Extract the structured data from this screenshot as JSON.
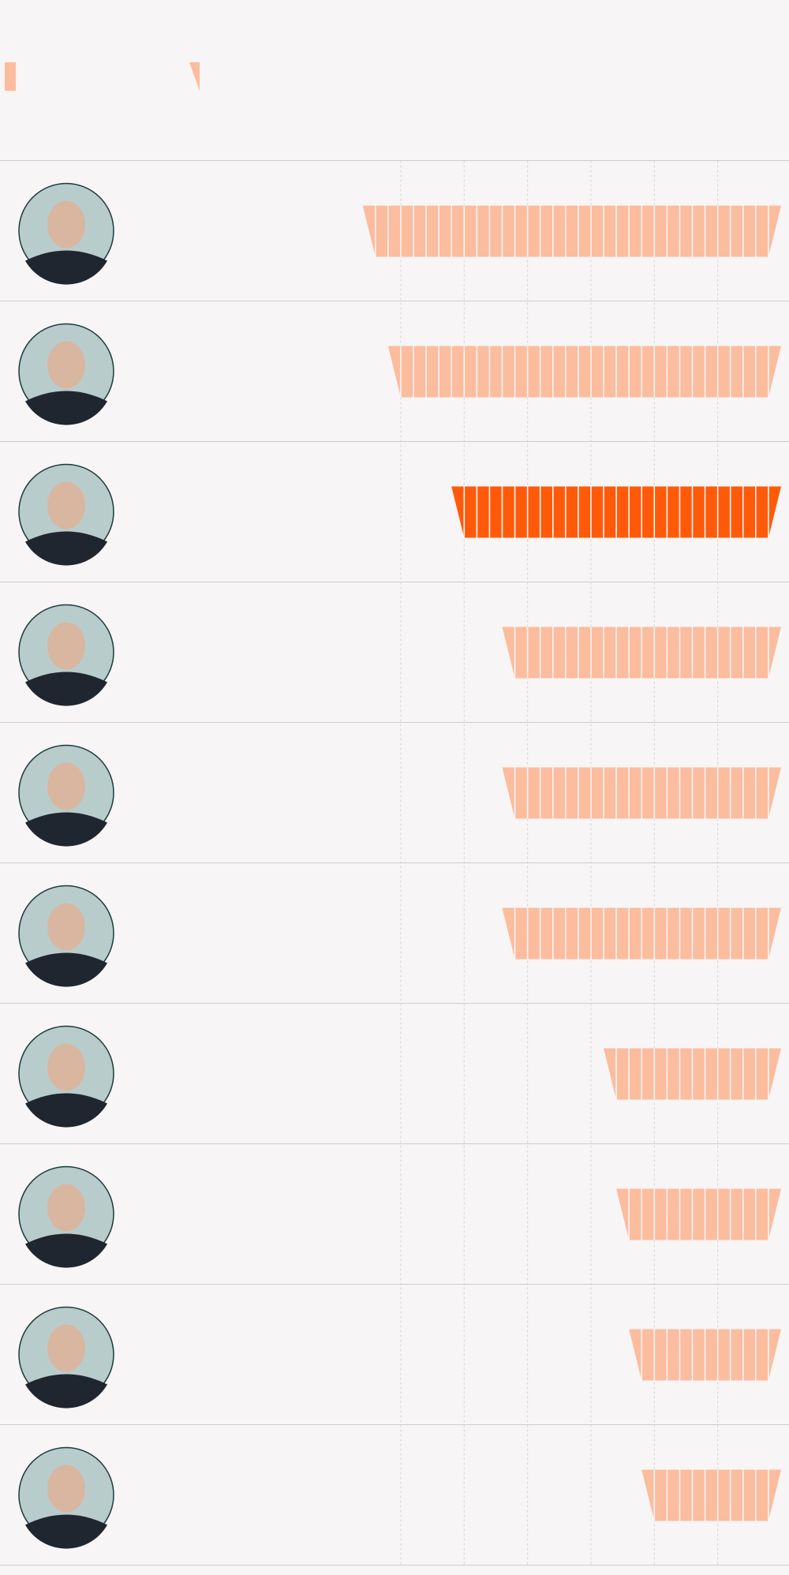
{
  "chart_data": {
    "type": "segmented-bar",
    "categories": [
      null,
      null,
      null,
      null,
      null,
      null,
      null,
      null,
      null,
      null
    ],
    "values": [
      33,
      31,
      26,
      22,
      22,
      22,
      14,
      13,
      12,
      11
    ],
    "colors": [
      "#fcbc9e",
      "#fcbc9e",
      "#ff5a0a",
      "#fcbc9e",
      "#fcbc9e",
      "#fcbc9e",
      "#fcbc9e",
      "#fcbc9e",
      "#fcbc9e",
      "#fcbc9e"
    ],
    "xlim": [
      0,
      35
    ],
    "xticks": [
      5,
      10,
      15,
      20,
      25,
      30
    ],
    "grid": true,
    "reversed": true
  }
}
